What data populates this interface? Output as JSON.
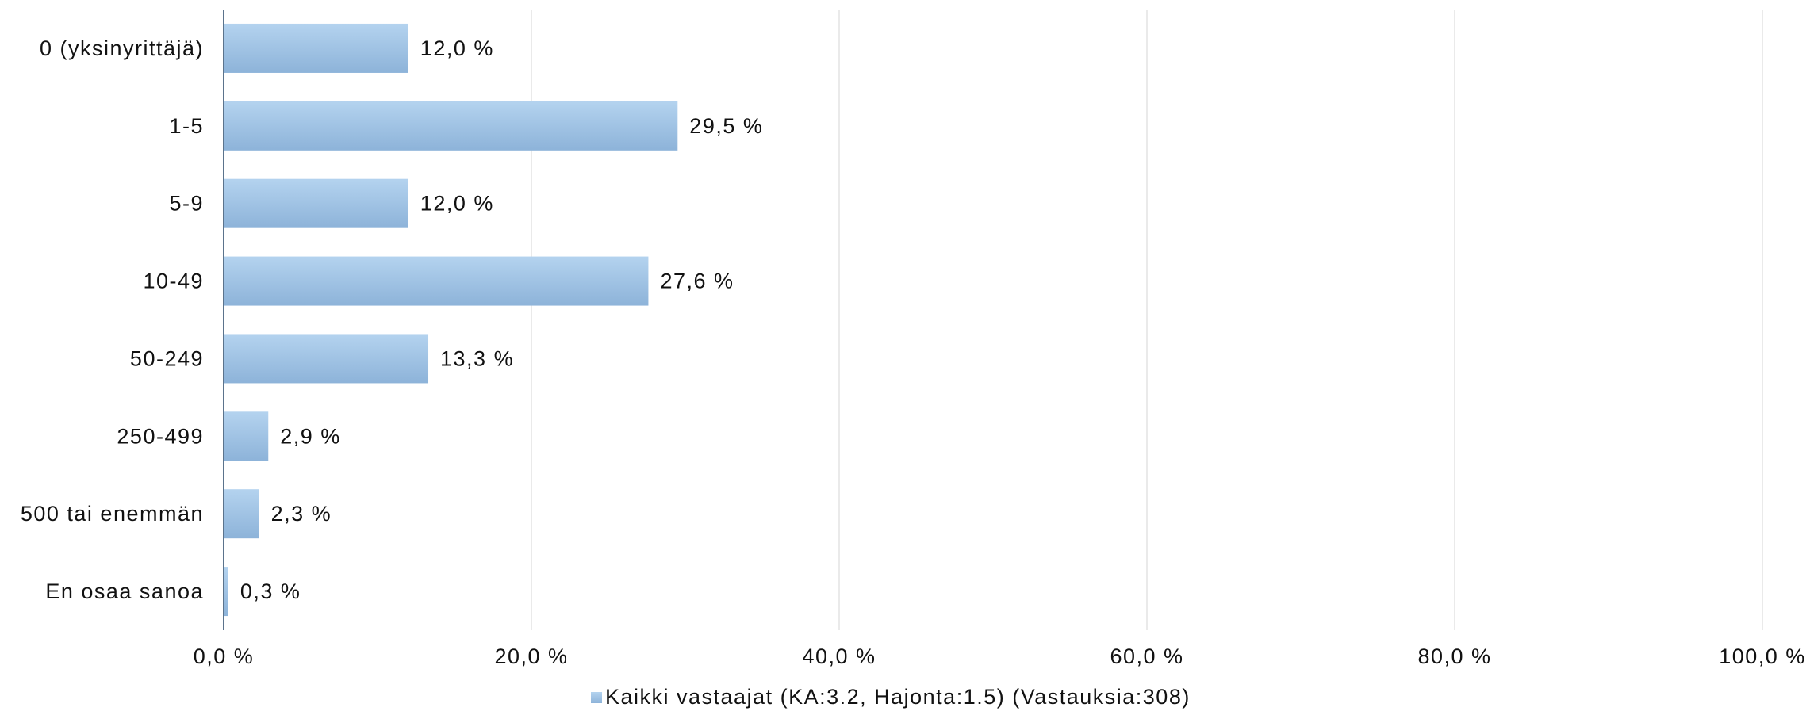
{
  "chart_data": {
    "type": "bar",
    "orientation": "horizontal",
    "categories": [
      "0 (yksinyrittäjä)",
      "1-5",
      "5-9",
      "10-49",
      "50-249",
      "250-499",
      "500 tai enemmän",
      "En osaa sanoa"
    ],
    "series": [
      {
        "name": "Kaikki vastaajat (KA:3.2, Hajonta:1.5) (Vastauksia:308)",
        "values": [
          12.0,
          29.5,
          12.0,
          27.6,
          13.3,
          2.9,
          2.3,
          0.3
        ],
        "value_labels": [
          "12,0 %",
          "29,5 %",
          "12,0 %",
          "27,6 %",
          "13,3 %",
          "2,9 %",
          "2,3 %",
          "0,3 %"
        ]
      }
    ],
    "xlim": [
      0,
      100
    ],
    "x_ticks": [
      0,
      20,
      40,
      60,
      80,
      100
    ],
    "x_tick_labels": [
      "0,0 %",
      "20,0 %",
      "40,0 %",
      "60,0 %",
      "80,0 %",
      "100,0 %"
    ],
    "grid": true,
    "legend": {
      "position": "bottom"
    },
    "colors": {
      "bar_top": "#b4d3ef",
      "bar_bottom": "#8db3d9",
      "grid": "#e3e3e3",
      "axis": "#5b738c"
    }
  }
}
